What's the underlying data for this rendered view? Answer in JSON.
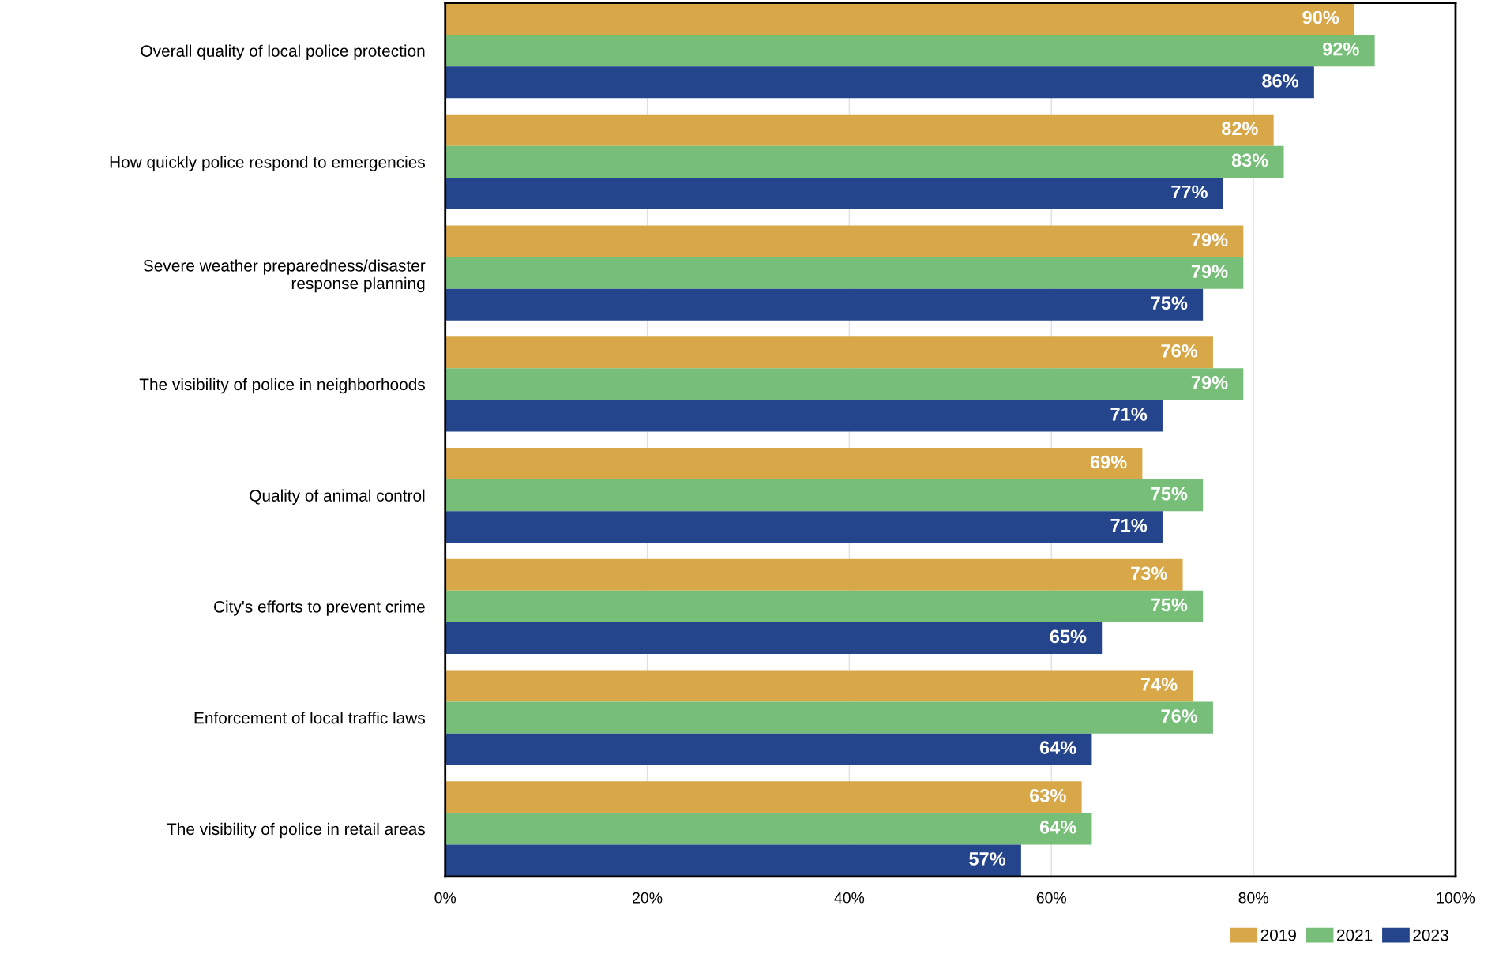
{
  "chart_data": {
    "type": "bar",
    "orientation": "horizontal",
    "categories": [
      "Overall quality of local police protection",
      "How quickly police respond to emergencies",
      "Severe weather preparedness/disaster\nresponse planning",
      "The visibility of police in neighborhoods",
      "Quality of animal control",
      "City's efforts to prevent crime",
      "Enforcement of local traffic laws",
      "The visibility of police in retail areas"
    ],
    "series": [
      {
        "name": "2019",
        "color": "#d8a748",
        "values": [
          90,
          82,
          79,
          76,
          69,
          73,
          74,
          63
        ],
        "value_labels": [
          "90%",
          "82%",
          "79%",
          "76%",
          "69%",
          "73%",
          "74%",
          "63%"
        ]
      },
      {
        "name": "2021",
        "color": "#77bf78",
        "values": [
          92,
          83,
          79,
          79,
          75,
          75,
          76,
          64
        ],
        "value_labels": [
          "92%",
          "83%",
          "79%",
          "79%",
          "75%",
          "75%",
          "76%",
          "64%"
        ]
      },
      {
        "name": "2023",
        "color": "#24448c",
        "values": [
          86,
          77,
          75,
          71,
          71,
          65,
          64,
          57
        ],
        "value_labels": [
          "86%",
          "77%",
          "75%",
          "71%",
          "71%",
          "65%",
          "64%",
          "57%"
        ]
      }
    ],
    "xlim": [
      0,
      100
    ],
    "xticks": [
      {
        "value": 0,
        "label": "0%"
      },
      {
        "value": 20,
        "label": "20%"
      },
      {
        "value": 40,
        "label": "40%"
      },
      {
        "value": 60,
        "label": "60%"
      },
      {
        "value": 80,
        "label": "80%"
      },
      {
        "value": 100,
        "label": "100%"
      }
    ],
    "grid": "x",
    "legend": "bottom right"
  }
}
